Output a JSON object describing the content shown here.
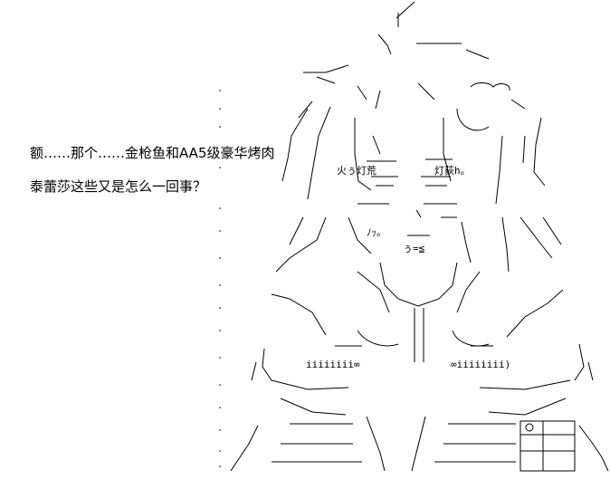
{
  "dialogue": {
    "line1": "额……那个……金枪鱼和AA5级豪华烤肉",
    "line2": "泰蕾莎这些又是怎么一回事？"
  },
  "art_text": {
    "sign_left": "火ぅ灯荒",
    "sign_right": "灯荻h。",
    "face_symbol": "ぅ=≦",
    "mouth_symbol": "ﾉｯ。",
    "infinity_left": "iiiiiiii∞",
    "infinity_right": "∞iiiiiiii)"
  }
}
